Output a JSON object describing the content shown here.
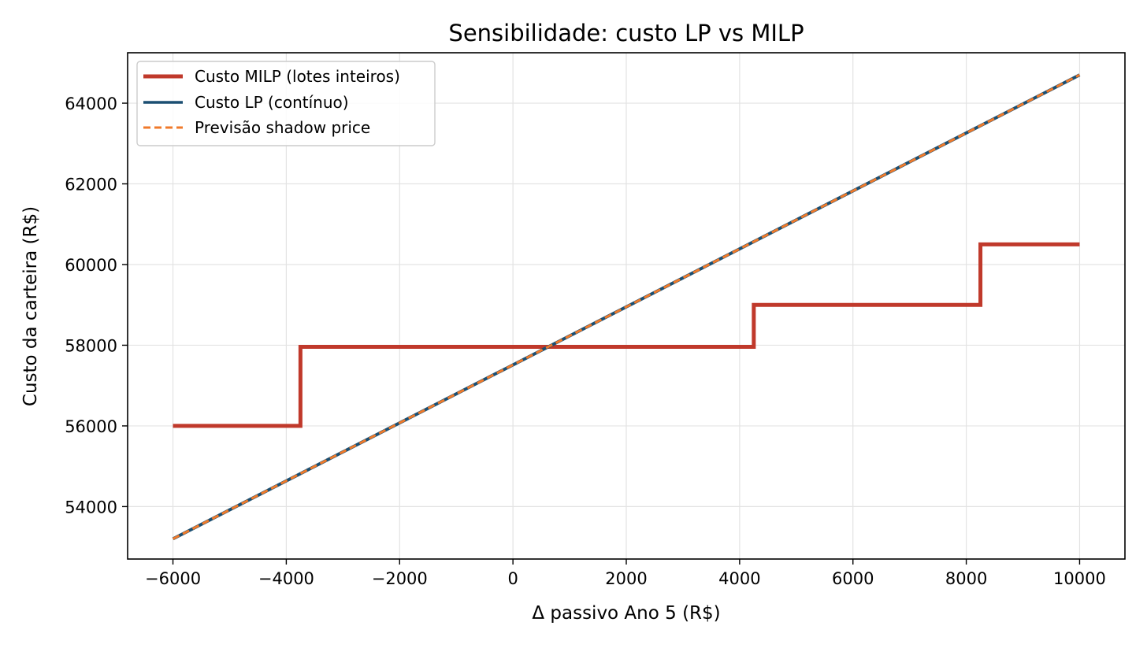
{
  "chart_data": {
    "type": "line",
    "title": "Sensibilidade: custo LP vs MILP",
    "xlabel": "Δ passivo Ano 5 (R$)",
    "ylabel": "Custo da carteira (R$)",
    "xlim": [
      -6800,
      10800
    ],
    "ylim": [
      52700,
      65250
    ],
    "xticks": [
      -6000,
      -4000,
      -2000,
      0,
      2000,
      4000,
      6000,
      8000,
      10000
    ],
    "xtick_labels": [
      "−6000",
      "−4000",
      "−2000",
      "0",
      "2000",
      "4000",
      "6000",
      "8000",
      "10000"
    ],
    "yticks": [
      54000,
      56000,
      58000,
      60000,
      62000,
      64000
    ],
    "ytick_labels": [
      "54000",
      "56000",
      "58000",
      "60000",
      "62000",
      "64000"
    ],
    "grid": true,
    "legend_position": "top-left",
    "series": [
      {
        "name": "Custo MILP (lotes inteiros)",
        "color": "#c0392b",
        "style": "step",
        "x": [
          -6000,
          -3750,
          -3750,
          4250,
          4250,
          8250,
          8250,
          10000
        ],
        "y": [
          56000,
          56000,
          57960,
          57960,
          59000,
          59000,
          60500,
          60500
        ]
      },
      {
        "name": "Custo LP (contínuo)",
        "color": "#1b4f72",
        "style": "solid",
        "x": [
          -6000,
          10000
        ],
        "y": [
          53200,
          64700
        ]
      },
      {
        "name": "Previsão shadow price",
        "color": "#f07a2a",
        "style": "dashed",
        "x": [
          -6000,
          10000
        ],
        "y": [
          53200,
          64700
        ]
      }
    ]
  }
}
